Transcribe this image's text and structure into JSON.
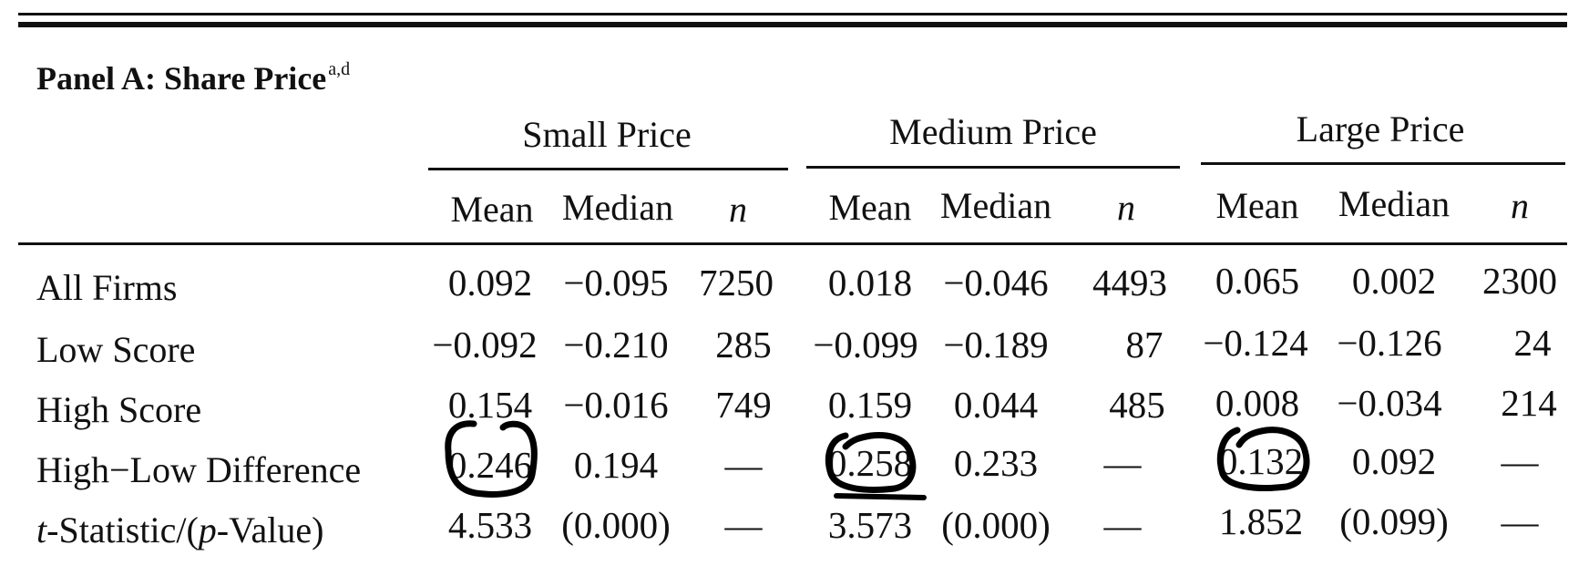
{
  "panel": {
    "title": "Panel A: Share Price",
    "superscript": "a,d"
  },
  "groups": [
    "Small Price",
    "Medium Price",
    "Large Price"
  ],
  "subheaders": [
    "Mean",
    "Median",
    "n"
  ],
  "rows": [
    {
      "label": "All Firms",
      "values": [
        "0.092",
        "−0.095",
        "7250",
        "0.018",
        "−0.046",
        "4493",
        "0.065",
        "0.002",
        "2300"
      ]
    },
    {
      "label": "Low Score",
      "values": [
        "−0.092",
        "−0.210",
        "285",
        "−0.099",
        "−0.189",
        "87",
        "−0.124",
        "−0.126",
        "24"
      ]
    },
    {
      "label": "High Score",
      "values": [
        "0.154",
        "−0.016",
        "749",
        "0.159",
        "0.044",
        "485",
        "0.008",
        "−0.034",
        "214"
      ]
    },
    {
      "label": "High−Low Difference",
      "values": [
        "0.246",
        "0.194",
        "—",
        "0.258",
        "0.233",
        "—",
        "0.132",
        "0.092",
        "—"
      ]
    },
    {
      "label_parts": [
        "t",
        "-Statistic/(",
        "p",
        "-Value)"
      ],
      "values": [
        "4.533",
        "(0.000)",
        "—",
        "3.573",
        "(0.000)",
        "—",
        "1.852",
        "(0.099)",
        "—"
      ]
    }
  ],
  "ink_color": "#000000",
  "text_color": "#111111"
}
